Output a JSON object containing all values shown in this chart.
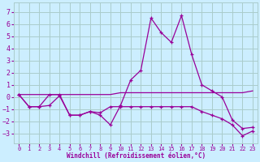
{
  "xlabel": "Windchill (Refroidissement éolien,°C)",
  "bg_color": "#cceeff",
  "grid_color": "#aacccc",
  "line_color": "#990099",
  "x_ticks": [
    0,
    1,
    2,
    3,
    4,
    5,
    6,
    7,
    8,
    9,
    10,
    11,
    12,
    13,
    14,
    15,
    16,
    17,
    18,
    19,
    20,
    21,
    22,
    23
  ],
  "y_ticks": [
    -3,
    -2,
    -1,
    0,
    1,
    2,
    3,
    4,
    5,
    6,
    7
  ],
  "ylim": [
    -3.8,
    7.8
  ],
  "xlim": [
    -0.5,
    23.5
  ],
  "series1_x": [
    0,
    1,
    2,
    3,
    4,
    5,
    6,
    7,
    8,
    9,
    10,
    11,
    12,
    13,
    14,
    15,
    16,
    17,
    18,
    19,
    20,
    21,
    22,
    23
  ],
  "series1_y": [
    0.2,
    -0.8,
    -0.8,
    0.2,
    0.2,
    -1.5,
    -1.5,
    -1.2,
    -1.5,
    -2.3,
    -0.7,
    1.4,
    2.2,
    6.5,
    5.3,
    4.5,
    6.7,
    3.5,
    1.0,
    0.5,
    0.0,
    -1.9,
    -2.6,
    -2.5
  ],
  "series2_x": [
    0,
    1,
    2,
    3,
    4,
    5,
    6,
    7,
    8,
    9,
    10,
    11,
    12,
    13,
    14,
    15,
    16,
    17,
    18,
    19,
    20,
    21,
    22,
    23
  ],
  "series2_y": [
    0.2,
    0.2,
    0.2,
    0.2,
    0.2,
    0.2,
    0.2,
    0.2,
    0.2,
    0.2,
    0.35,
    0.35,
    0.35,
    0.35,
    0.35,
    0.35,
    0.35,
    0.35,
    0.35,
    0.35,
    0.35,
    0.35,
    0.35,
    0.5
  ],
  "series3_x": [
    0,
    1,
    2,
    3,
    4,
    5,
    6,
    7,
    8,
    9,
    10,
    11,
    12,
    13,
    14,
    15,
    16,
    17,
    18,
    19,
    20,
    21,
    22,
    23
  ],
  "series3_y": [
    0.2,
    -0.8,
    -0.8,
    -0.7,
    0.1,
    -1.5,
    -1.5,
    -1.2,
    -1.3,
    -0.8,
    -0.8,
    -0.8,
    -0.8,
    -0.8,
    -0.8,
    -0.8,
    -0.8,
    -0.8,
    -1.2,
    -1.5,
    -1.8,
    -2.3,
    -3.2,
    -2.8
  ]
}
